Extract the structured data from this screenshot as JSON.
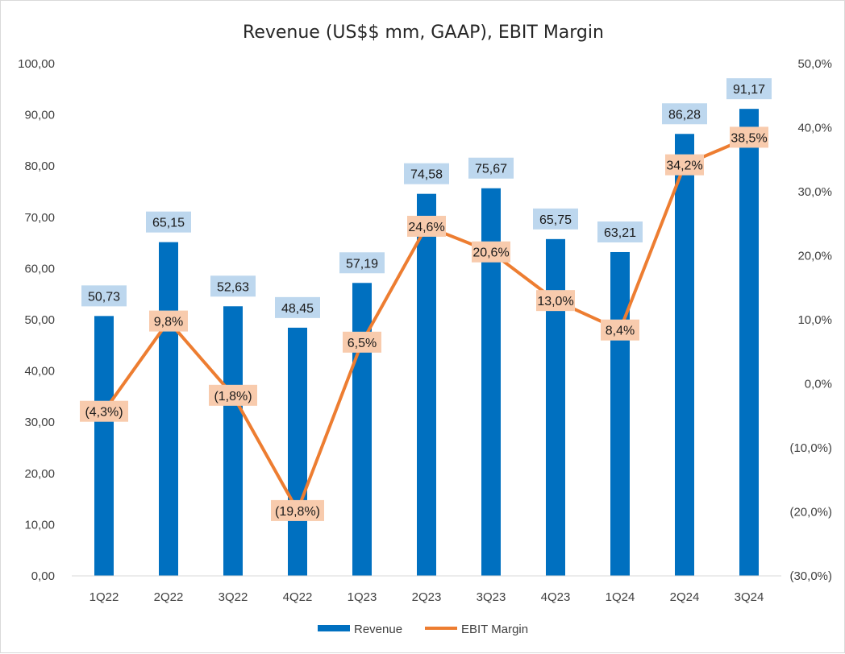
{
  "chart_data": {
    "type": "bar",
    "title": "Revenue (US$$ mm, GAAP), EBIT Margin",
    "categories": [
      "1Q22",
      "2Q22",
      "3Q22",
      "4Q22",
      "1Q23",
      "2Q23",
      "3Q23",
      "4Q23",
      "1Q24",
      "2Q24",
      "3Q24"
    ],
    "series": [
      {
        "name": "Revenue",
        "type": "bar",
        "axis": "left",
        "color": "#0070C0",
        "label_bg": "#BDD7EE",
        "values": [
          50.73,
          65.15,
          52.63,
          48.45,
          57.19,
          74.58,
          75.67,
          65.75,
          63.21,
          86.28,
          91.17
        ],
        "labels": [
          "50,73",
          "65,15",
          "52,63",
          "48,45",
          "57,19",
          "74,58",
          "75,67",
          "65,75",
          "63,21",
          "86,28",
          "91,17"
        ]
      },
      {
        "name": "EBIT Margin",
        "type": "line",
        "axis": "right",
        "color": "#ED7D31",
        "label_bg": "#F8CBAD",
        "values": [
          -4.3,
          9.8,
          -1.8,
          -19.8,
          6.5,
          24.6,
          20.6,
          13.0,
          8.4,
          34.2,
          38.5
        ],
        "labels": [
          "(4,3%)",
          "9,8%",
          "(1,8%)",
          "(19,8%)",
          "6,5%",
          "24,6%",
          "20,6%",
          "13,0%",
          "8,4%",
          "34,2%",
          "38,5%"
        ]
      }
    ],
    "y_left": {
      "ylim": [
        0,
        100
      ],
      "ticks": [
        0,
        10,
        20,
        30,
        40,
        50,
        60,
        70,
        80,
        90,
        100
      ],
      "tick_labels": [
        "0,00",
        "10,00",
        "20,00",
        "30,00",
        "40,00",
        "50,00",
        "60,00",
        "70,00",
        "80,00",
        "90,00",
        "100,00"
      ]
    },
    "y_right": {
      "ylim": [
        -30,
        50
      ],
      "ticks": [
        -30,
        -20,
        -10,
        0,
        10,
        20,
        30,
        40,
        50
      ],
      "tick_labels": [
        "(30,0%)",
        "(20,0%)",
        "(10,0%)",
        "0,0%",
        "10,0%",
        "20,0%",
        "30,0%",
        "40,0%",
        "50,0%"
      ]
    },
    "grid": false,
    "legend": "bottom"
  }
}
